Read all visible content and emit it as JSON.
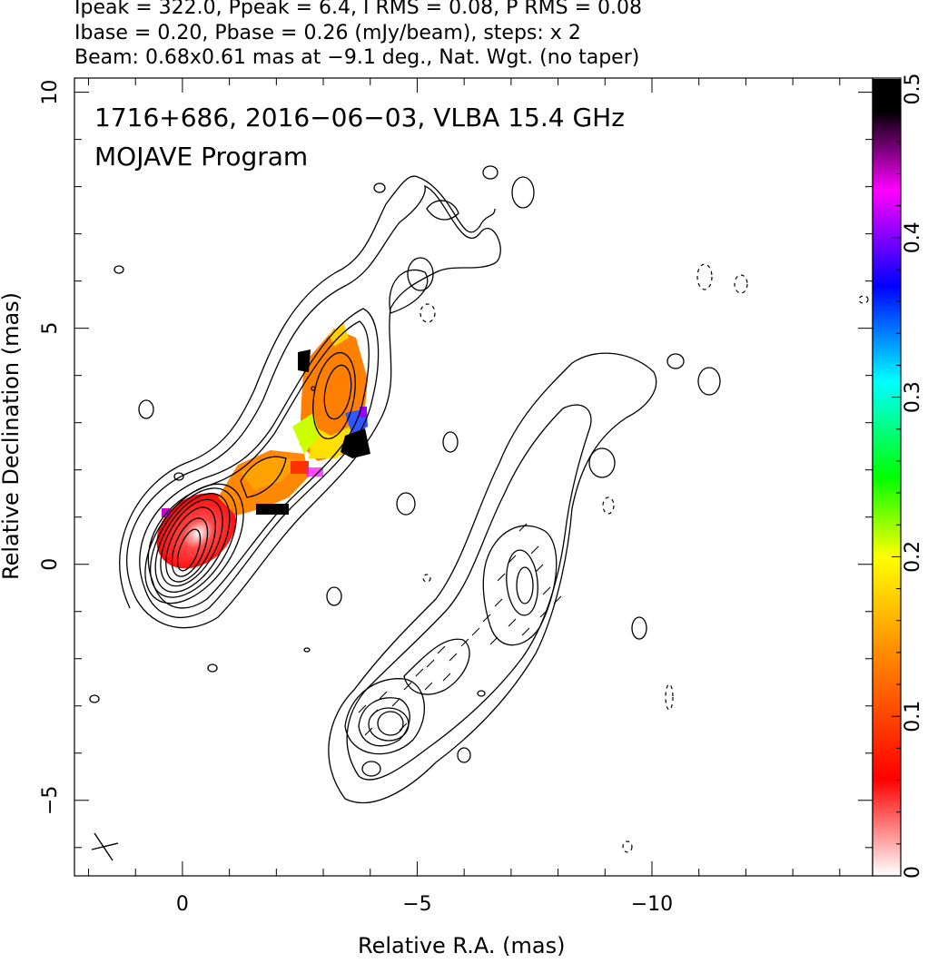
{
  "header": {
    "line1": "Ipeak = 322.0, Ppeak = 6.4, I RMS = 0.08, P RMS = 0.08",
    "line2": "Ibase = 0.20, Pbase = 0.26 (mJy/beam), steps: x 2",
    "line3": "Beam: 0.68x0.61 mas at −9.1 deg., Nat. Wgt. (no taper)"
  },
  "chart_data": {
    "type": "heatmap",
    "title": "1716+686, 2016−06−03, VLBA 15.4 GHz",
    "subtitle": "MOJAVE Program",
    "xlabel": "Relative R.A. (mas)",
    "ylabel": "Relative Declination (mas)",
    "xlim": [
      2.3,
      -14.7
    ],
    "ylim": [
      -6.6,
      10.3
    ],
    "x_ticks": [
      {
        "v": 0,
        "label": "0"
      },
      {
        "v": -5,
        "label": "−5"
      },
      {
        "v": -10,
        "label": "−10"
      }
    ],
    "y_ticks": [
      {
        "v": -5,
        "label": "−5"
      },
      {
        "v": 0,
        "label": "0"
      },
      {
        "v": 5,
        "label": "5"
      },
      {
        "v": 10,
        "label": "10"
      }
    ],
    "colorbar": {
      "range": [
        0,
        0.5
      ],
      "ticks": [
        {
          "v": 0,
          "label": "0"
        },
        {
          "v": 0.1,
          "label": "0.1"
        },
        {
          "v": 0.2,
          "label": "0.2"
        },
        {
          "v": 0.3,
          "label": "0.3"
        },
        {
          "v": 0.4,
          "label": "0.4"
        },
        {
          "v": 0.5,
          "label": "0.5"
        }
      ],
      "stops": [
        "#ffffff",
        "#ff0000",
        "#ff8c00",
        "#ffff00",
        "#00ff00",
        "#00ffff",
        "#0000ff",
        "#ff00ff",
        "#000000"
      ]
    },
    "stokes_i_contours": {
      "peak_mJy_per_beam": 322.0,
      "base_mJy_per_beam": 0.2,
      "step_factor": 2,
      "core_center": [
        -0.1,
        0.2
      ]
    },
    "polarized_contours": {
      "peak_mJy_per_beam": 6.4,
      "base_mJy_per_beam": 0.26,
      "step_factor": 2,
      "peaks": [
        [
          -4.3,
          -3.4
        ],
        [
          -7.0,
          -0.5
        ]
      ]
    },
    "beam": {
      "major_mas": 0.68,
      "minor_mas": 0.61,
      "pa_deg": -9.1
    },
    "fractional_polarization_regions": [
      {
        "x": 0.0,
        "y": 0.7,
        "value": 0.06
      },
      {
        "x": -1.7,
        "y": 1.9,
        "value": 0.12
      },
      {
        "x": -3.1,
        "y": 3.9,
        "value": 0.12
      },
      {
        "x": -3.0,
        "y": 2.9,
        "value": 0.18
      },
      {
        "x": -2.6,
        "y": 4.6,
        "value": 0.19
      },
      {
        "x": -3.8,
        "y": 2.7,
        "value": 0.4
      },
      {
        "x": -1.8,
        "y": 1.2,
        "value": 0.5
      }
    ],
    "grid": false,
    "legend": "colorbar right"
  }
}
